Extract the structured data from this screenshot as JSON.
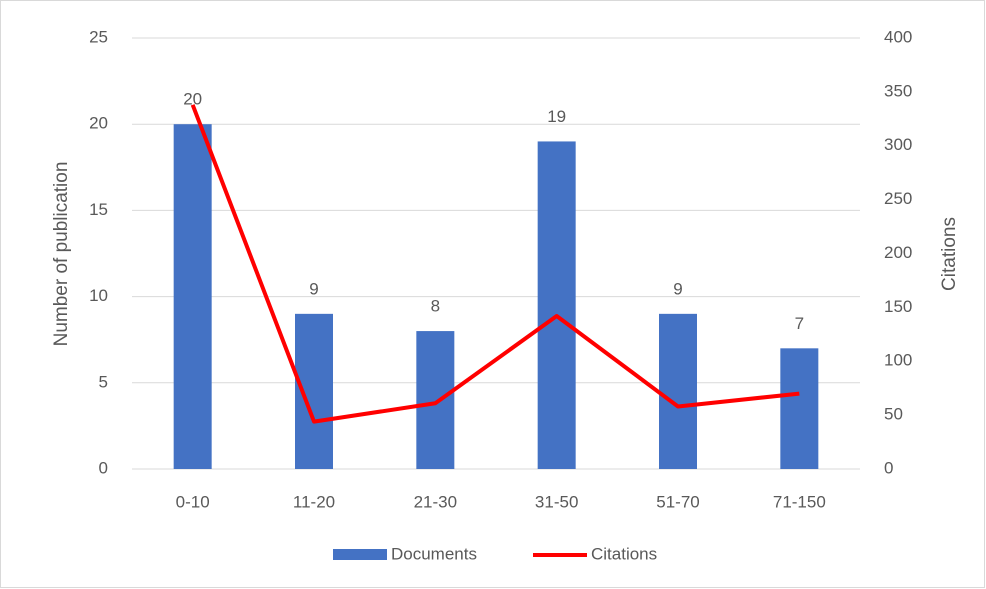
{
  "chart_data": {
    "type": "bar",
    "categories": [
      "0-10",
      "11-20",
      "21-30",
      "31-50",
      "51-70",
      "71-150"
    ],
    "series": [
      {
        "name": "Documents",
        "type": "bar",
        "color": "#4472c4",
        "values": [
          20,
          9,
          8,
          19,
          9,
          7
        ]
      },
      {
        "name": "Citations",
        "type": "line",
        "axis": "y2",
        "color": "#ff0000",
        "values": [
          338,
          44,
          61,
          142,
          58,
          70
        ]
      }
    ],
    "ylabel": "Number of  publication",
    "y2label": "Citations",
    "ylim": [
      0,
      25
    ],
    "yticks": [
      0,
      5,
      10,
      15,
      20,
      25
    ],
    "y2lim": [
      0,
      400
    ],
    "y2ticks": [
      0,
      50,
      100,
      150,
      200,
      250,
      300,
      350,
      400
    ],
    "grid": true,
    "legend": "bottom"
  }
}
